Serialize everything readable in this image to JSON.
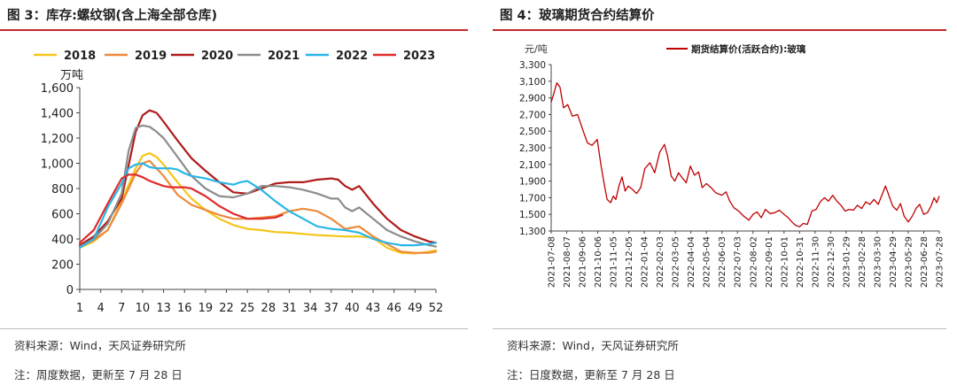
{
  "left": {
    "title": "图 3：库存:螺纹钢(含上海全部仓库)",
    "source": "资料来源：Wind，天风证券研究所",
    "note": "注：周度数据，更新至 7 月 28 日"
  },
  "right": {
    "title": "图 4：玻璃期货合约结算价",
    "source": "资料来源：Wind，天风证券研究所",
    "note": "注：日度数据，更新至 7 月 28 日"
  },
  "chart_data": [
    {
      "type": "line",
      "ylabel": "万吨",
      "xlabel": "",
      "ylim": [
        0,
        1600
      ],
      "xlim": [
        1,
        52
      ],
      "yticks": [
        0,
        200,
        400,
        600,
        800,
        1000,
        1200,
        1400,
        1600
      ],
      "ytick_labels": [
        "0",
        "200",
        "400",
        "600",
        "800",
        "1,000",
        "1,200",
        "1,400",
        "1,600"
      ],
      "xticks": [
        1,
        4,
        7,
        10,
        13,
        16,
        19,
        22,
        25,
        28,
        31,
        34,
        37,
        40,
        43,
        46,
        49,
        52
      ],
      "legend_position": "top",
      "grid": false,
      "series": [
        {
          "name": "2018",
          "color": "#f5c518",
          "x": [
            1,
            3,
            5,
            7,
            9,
            10,
            11,
            12,
            13,
            15,
            17,
            19,
            21,
            23,
            25,
            27,
            29,
            31,
            33,
            35,
            37,
            39,
            41,
            43,
            45,
            47,
            49,
            51,
            52
          ],
          "values": [
            330,
            380,
            470,
            700,
            960,
            1060,
            1080,
            1050,
            990,
            850,
            720,
            630,
            560,
            510,
            480,
            470,
            455,
            450,
            440,
            430,
            425,
            420,
            420,
            410,
            330,
            290,
            285,
            300,
            310
          ]
        },
        {
          "name": "2019",
          "color": "#ee8a3c",
          "x": [
            1,
            3,
            5,
            7,
            9,
            10,
            11,
            13,
            15,
            17,
            19,
            21,
            23,
            25,
            27,
            29,
            31,
            33,
            35,
            37,
            39,
            41,
            43,
            45,
            47,
            49,
            51,
            52
          ],
          "values": [
            340,
            390,
            470,
            680,
            920,
            1000,
            1020,
            900,
            750,
            670,
            630,
            590,
            560,
            560,
            570,
            580,
            620,
            640,
            620,
            560,
            480,
            500,
            420,
            360,
            300,
            290,
            290,
            300
          ]
        },
        {
          "name": "2020",
          "color": "#b01c1c",
          "x": [
            1,
            3,
            5,
            7,
            9,
            10,
            11,
            12,
            13,
            15,
            17,
            19,
            21,
            23,
            25,
            27,
            29,
            31,
            33,
            35,
            37,
            38,
            39,
            40,
            41,
            43,
            45,
            47,
            49,
            51,
            52
          ],
          "values": [
            350,
            420,
            540,
            720,
            1250,
            1380,
            1420,
            1400,
            1330,
            1180,
            1040,
            940,
            850,
            770,
            760,
            800,
            840,
            850,
            850,
            870,
            880,
            870,
            820,
            790,
            820,
            680,
            560,
            470,
            420,
            380,
            370
          ]
        },
        {
          "name": "2021",
          "color": "#8c8c8c",
          "x": [
            1,
            3,
            5,
            7,
            8,
            9,
            10,
            11,
            12,
            13,
            15,
            17,
            19,
            21,
            23,
            25,
            27,
            29,
            31,
            33,
            35,
            37,
            38,
            39,
            40,
            41,
            43,
            45,
            47,
            49,
            51,
            52
          ],
          "values": [
            340,
            400,
            520,
            760,
            1100,
            1280,
            1300,
            1290,
            1250,
            1200,
            1050,
            900,
            800,
            740,
            730,
            760,
            820,
            820,
            810,
            790,
            760,
            720,
            720,
            650,
            620,
            650,
            560,
            470,
            420,
            380,
            350,
            340
          ]
        },
        {
          "name": "2022",
          "color": "#29b6e6",
          "x": [
            1,
            3,
            5,
            7,
            8,
            9,
            10,
            11,
            12,
            13,
            14,
            15,
            16,
            17,
            19,
            21,
            23,
            24,
            25,
            27,
            29,
            31,
            33,
            35,
            37,
            39,
            41,
            43,
            45,
            47,
            49,
            51,
            52
          ],
          "values": [
            330,
            400,
            650,
            840,
            960,
            990,
            1000,
            970,
            960,
            960,
            960,
            950,
            920,
            900,
            880,
            850,
            830,
            850,
            860,
            790,
            700,
            620,
            560,
            500,
            480,
            470,
            450,
            400,
            370,
            350,
            350,
            360,
            370
          ]
        },
        {
          "name": "2023",
          "color": "#e02b2b",
          "x": [
            1,
            3,
            5,
            7,
            8,
            9,
            10,
            11,
            12,
            13,
            14,
            15,
            16,
            17,
            19,
            21,
            23,
            25,
            27,
            29,
            30
          ],
          "values": [
            370,
            470,
            680,
            880,
            910,
            910,
            890,
            860,
            840,
            820,
            810,
            810,
            810,
            800,
            740,
            660,
            600,
            560,
            560,
            570,
            590
          ]
        }
      ]
    },
    {
      "type": "line",
      "ylabel": "元/吨",
      "xlabel": "",
      "ylim": [
        1300,
        3300
      ],
      "yticks": [
        1300,
        1500,
        1700,
        1900,
        2100,
        2300,
        2500,
        2700,
        2900,
        3100,
        3300
      ],
      "ytick_labels": [
        "1,300",
        "1,500",
        "1,700",
        "1,900",
        "2,100",
        "2,300",
        "2,500",
        "2,700",
        "2,900",
        "3,100",
        "3,300"
      ],
      "x_categories": [
        "2021-07-08",
        "2021-08-07",
        "2021-09-06",
        "2021-10-06",
        "2021-11-05",
        "2021-12-05",
        "2022-01-04",
        "2022-02-03",
        "2022-03-05",
        "2022-04-04",
        "2022-05-04",
        "2022-06-03",
        "2022-07-03",
        "2022-08-02",
        "2022-09-01",
        "2022-10-01",
        "2022-10-31",
        "2022-11-30",
        "2022-12-30",
        "2023-01-29",
        "2023-02-28",
        "2023-03-30",
        "2023-04-29",
        "2023-05-29",
        "2023-06-28",
        "2023-07-28"
      ],
      "legend_position": "top",
      "grid": false,
      "series": [
        {
          "name": "期货结算价(活跃合约):玻璃",
          "color": "#c00000",
          "x": [
            "2021-07-08",
            "2021-07-13",
            "2021-07-19",
            "2021-07-25",
            "2021-08-01",
            "2021-08-09",
            "2021-08-18",
            "2021-08-28",
            "2021-09-08",
            "2021-09-16",
            "2021-09-25",
            "2021-10-05",
            "2021-10-12",
            "2021-10-18",
            "2021-10-24",
            "2021-10-31",
            "2021-11-05",
            "2021-11-10",
            "2021-11-16",
            "2021-11-22",
            "2021-11-28",
            "2021-12-04",
            "2021-12-12",
            "2021-12-20",
            "2021-12-28",
            "2022-01-05",
            "2022-01-15",
            "2022-01-24",
            "2022-02-03",
            "2022-02-12",
            "2022-02-18",
            "2022-02-25",
            "2022-03-04",
            "2022-03-11",
            "2022-03-18",
            "2022-03-26",
            "2022-04-03",
            "2022-04-11",
            "2022-04-19",
            "2022-04-26",
            "2022-05-04",
            "2022-05-13",
            "2022-05-22",
            "2022-06-03",
            "2022-06-11",
            "2022-06-18",
            "2022-06-26",
            "2022-07-05",
            "2022-07-15",
            "2022-07-25",
            "2022-08-02",
            "2022-08-10",
            "2022-08-18",
            "2022-08-26",
            "2022-09-04",
            "2022-09-13",
            "2022-09-22",
            "2022-10-01",
            "2022-10-09",
            "2022-10-16",
            "2022-10-23",
            "2022-10-31",
            "2022-11-07",
            "2022-11-15",
            "2022-11-24",
            "2022-12-02",
            "2022-12-10",
            "2022-12-18",
            "2022-12-26",
            "2023-01-03",
            "2023-01-11",
            "2023-01-19",
            "2023-01-27",
            "2023-02-04",
            "2023-02-12",
            "2023-02-20",
            "2023-02-28",
            "2023-03-08",
            "2023-03-16",
            "2023-03-24",
            "2023-04-01",
            "2023-04-08",
            "2023-04-15",
            "2023-04-22",
            "2023-04-29",
            "2023-05-07",
            "2023-05-14",
            "2023-05-21",
            "2023-05-29",
            "2023-06-06",
            "2023-06-13",
            "2023-06-20",
            "2023-06-28",
            "2023-07-05",
            "2023-07-12",
            "2023-07-18",
            "2023-07-23",
            "2023-07-28"
          ],
          "values": [
            2850,
            2950,
            3080,
            3030,
            2780,
            2820,
            2680,
            2700,
            2500,
            2360,
            2330,
            2400,
            2100,
            1880,
            1680,
            1640,
            1720,
            1680,
            1840,
            1950,
            1780,
            1840,
            1800,
            1750,
            1820,
            2050,
            2120,
            2000,
            2250,
            2340,
            2200,
            1960,
            1900,
            2000,
            1940,
            1880,
            2080,
            1970,
            2010,
            1820,
            1870,
            1820,
            1760,
            1730,
            1770,
            1660,
            1580,
            1540,
            1480,
            1430,
            1500,
            1530,
            1460,
            1560,
            1510,
            1520,
            1550,
            1500,
            1460,
            1410,
            1370,
            1350,
            1390,
            1380,
            1540,
            1560,
            1650,
            1700,
            1660,
            1730,
            1660,
            1610,
            1540,
            1560,
            1550,
            1610,
            1570,
            1650,
            1620,
            1680,
            1620,
            1730,
            1840,
            1720,
            1600,
            1550,
            1630,
            1480,
            1410,
            1480,
            1570,
            1620,
            1500,
            1520,
            1600,
            1700,
            1640,
            1720
          ]
        }
      ]
    }
  ]
}
